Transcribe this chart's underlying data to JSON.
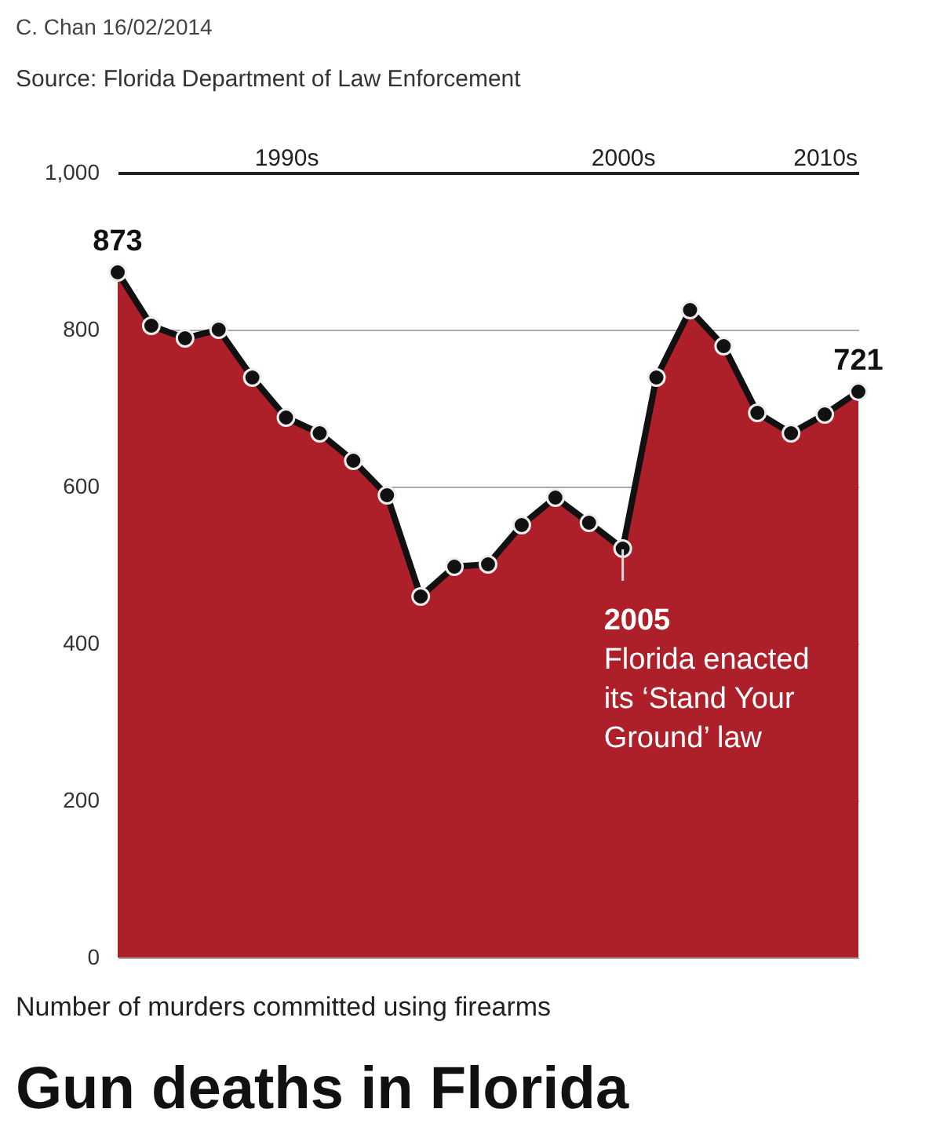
{
  "chart_data": {
    "type": "area",
    "title": "Gun deaths in Florida",
    "ylabel": "Number of murders committed using firearms",
    "annotations": [
      "Source: Florida Department of Law Enforcement",
      "C. Chan 16/02/2014",
      {
        "text": "2005\nFlorida enacted\nits ‘Stand Your\nGround’ law",
        "x": "2000s",
        "y": 520
      }
    ],
    "categories": [
      null,
      null,
      null,
      null,
      null,
      "1990s",
      null,
      null,
      null,
      null,
      null,
      null,
      null,
      null,
      null,
      "2000s",
      null,
      null,
      null,
      null,
      null,
      "2010s",
      null
    ],
    "series": [
      {
        "color": "#ae2029",
        "marker": "circle",
        "values": [
          873,
          805,
          789,
          800,
          739,
          688,
          668,
          633,
          589,
          460,
          498,
          501,
          551,
          586,
          554,
          521,
          739,
          825,
          779,
          694,
          668,
          692,
          721
        ],
        "value_labels": [
          "873",
          null,
          null,
          null,
          null,
          null,
          null,
          null,
          null,
          null,
          null,
          null,
          null,
          null,
          null,
          null,
          null,
          null,
          null,
          null,
          null,
          null,
          "721"
        ]
      }
    ],
    "ylim": [
      0,
      1000
    ],
    "yticks": [
      0,
      200,
      400,
      600,
      800,
      {
        "value": 1000,
        "label": "1,000"
      }
    ],
    "grid": "y"
  }
}
